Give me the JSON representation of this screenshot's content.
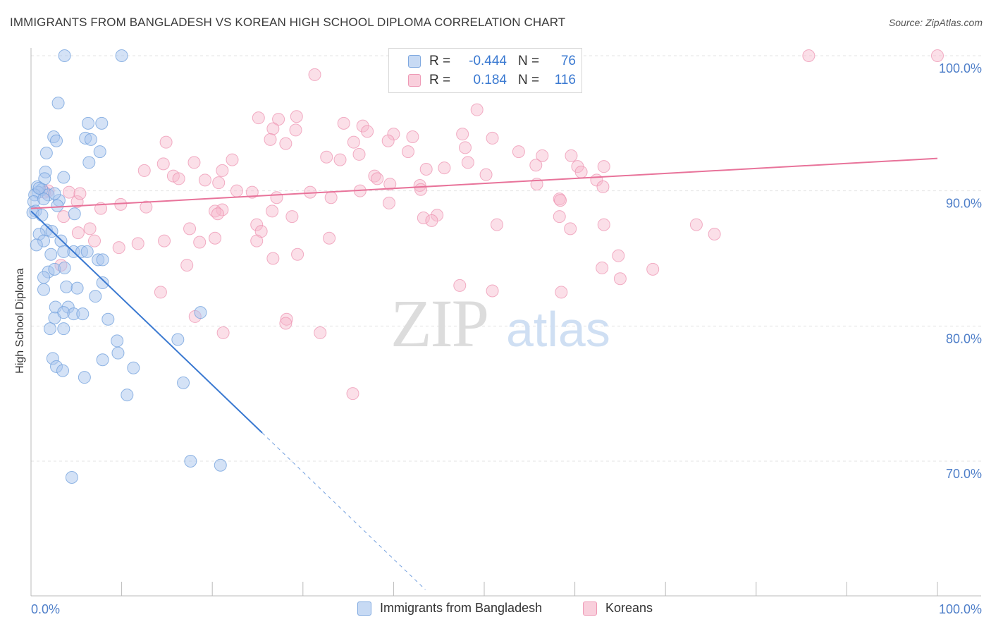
{
  "title": "IMMIGRANTS FROM BANGLADESH VS KOREAN HIGH SCHOOL DIPLOMA CORRELATION CHART",
  "source": "Source: ZipAtlas.com",
  "watermark": {
    "zip": "ZIP",
    "atlas": "atlas"
  },
  "legend": {
    "series1": {
      "r_label": "R =",
      "r_value": "-0.444",
      "n_label": "N =",
      "n_value": "76"
    },
    "series2": {
      "r_label": "R =",
      "r_value": "0.184",
      "n_label": "N =",
      "n_value": "116"
    }
  },
  "colors": {
    "blue_fill": "#a9c6ee",
    "blue_stroke": "#6f9fdc",
    "blue_line": "#3a79d1",
    "blue_text": "#3a79d1",
    "pink_fill": "#f6b9cd",
    "pink_stroke": "#ec8fae",
    "pink_line": "#e8739a",
    "grid": "#e3e3e3",
    "axis_text": "#4f7fc9"
  },
  "chart_data": {
    "type": "scatter",
    "xlabel": "",
    "ylabel": "High School Diploma",
    "xlim": [
      0,
      100
    ],
    "ylim": [
      60,
      100
    ],
    "x_tick_labels": [
      "0.0%",
      "100.0%"
    ],
    "y_ticks": [
      70,
      80,
      90,
      100
    ],
    "y_tick_labels": [
      "70.0%",
      "80.0%",
      "90.0%",
      "100.0%"
    ],
    "grid": true,
    "legend_position": "top-center",
    "series": [
      {
        "name": "Immigrants from Bangladesh",
        "color": "#a9c6ee",
        "trend": {
          "x": [
            0,
            25.5
          ],
          "y": [
            88.5,
            72.1
          ],
          "dashed_to": [
            43.5,
            60.5
          ]
        },
        "points": [
          [
            3.7,
            100
          ],
          [
            10,
            100
          ],
          [
            3,
            96.5
          ],
          [
            6.3,
            95
          ],
          [
            7.8,
            95
          ],
          [
            2.5,
            94
          ],
          [
            6,
            93.9
          ],
          [
            6.6,
            93.8
          ],
          [
            2.8,
            93.7
          ],
          [
            1.7,
            92.8
          ],
          [
            7.6,
            92.9
          ],
          [
            6.4,
            92.1
          ],
          [
            1.6,
            91.4
          ],
          [
            3.6,
            91
          ],
          [
            1.5,
            90.9
          ],
          [
            0.7,
            90.3
          ],
          [
            1.2,
            90.1
          ],
          [
            0.8,
            89.9
          ],
          [
            0.4,
            89.7
          ],
          [
            1.9,
            89.7
          ],
          [
            0.3,
            89.2
          ],
          [
            1.4,
            89.4
          ],
          [
            3.1,
            89.3
          ],
          [
            0.5,
            88.5
          ],
          [
            0.2,
            88.4
          ],
          [
            2.9,
            88.9
          ],
          [
            4.8,
            88.3
          ],
          [
            1.7,
            87.1
          ],
          [
            2.3,
            87
          ],
          [
            0.9,
            86.8
          ],
          [
            1.4,
            86.3
          ],
          [
            3.3,
            86.3
          ],
          [
            0.6,
            86
          ],
          [
            3.6,
            85.5
          ],
          [
            4.7,
            85.5
          ],
          [
            5.6,
            85.5
          ],
          [
            6.2,
            85.5
          ],
          [
            2.2,
            85.3
          ],
          [
            7.4,
            84.9
          ],
          [
            7.9,
            84.9
          ],
          [
            1.9,
            84
          ],
          [
            2.6,
            84.2
          ],
          [
            3.7,
            84.3
          ],
          [
            1.4,
            83.6
          ],
          [
            7.9,
            83.2
          ],
          [
            3.9,
            82.9
          ],
          [
            5.1,
            82.8
          ],
          [
            1.4,
            82.7
          ],
          [
            7.1,
            82.2
          ],
          [
            2.7,
            81.4
          ],
          [
            4.1,
            81.4
          ],
          [
            2.6,
            80.6
          ],
          [
            3.6,
            81
          ],
          [
            4.7,
            80.9
          ],
          [
            5.7,
            80.9
          ],
          [
            8.5,
            80.5
          ],
          [
            18.7,
            81
          ],
          [
            2.1,
            79.8
          ],
          [
            3.6,
            79.8
          ],
          [
            16.2,
            79
          ],
          [
            9.5,
            78.9
          ],
          [
            9.6,
            78
          ],
          [
            7.9,
            77.5
          ],
          [
            2.4,
            77.6
          ],
          [
            11.3,
            76.9
          ],
          [
            2.8,
            77
          ],
          [
            3.5,
            76.7
          ],
          [
            5.9,
            76.2
          ],
          [
            16.8,
            75.8
          ],
          [
            10.6,
            74.9
          ],
          [
            17.6,
            70
          ],
          [
            20.9,
            69.7
          ],
          [
            4.5,
            68.8
          ],
          [
            0.9,
            90.2
          ],
          [
            2.6,
            89.8
          ],
          [
            1.2,
            88.2
          ]
        ]
      },
      {
        "name": "Koreans",
        "color": "#f6b9cd",
        "trend": {
          "x": [
            0,
            100
          ],
          "y": [
            88.7,
            92.4
          ]
        },
        "points": [
          [
            40.3,
            100
          ],
          [
            85.8,
            100
          ],
          [
            100,
            100
          ],
          [
            31.3,
            98.6
          ],
          [
            49.2,
            96
          ],
          [
            29.3,
            95.5
          ],
          [
            25.1,
            95.4
          ],
          [
            27.3,
            95.3
          ],
          [
            34.5,
            95
          ],
          [
            26.7,
            94.6
          ],
          [
            29.2,
            94.5
          ],
          [
            36.6,
            94.8
          ],
          [
            37.1,
            94.4
          ],
          [
            47.6,
            94.2
          ],
          [
            40,
            94.2
          ],
          [
            42.1,
            94
          ],
          [
            50.9,
            93.9
          ],
          [
            39.4,
            93.7
          ],
          [
            26.4,
            93.8
          ],
          [
            35.6,
            93.6
          ],
          [
            14.9,
            93.6
          ],
          [
            28.1,
            93.5
          ],
          [
            47.9,
            93.2
          ],
          [
            41.6,
            92.9
          ],
          [
            36.2,
            92.7
          ],
          [
            53.8,
            92.9
          ],
          [
            56.4,
            92.6
          ],
          [
            59.6,
            92.6
          ],
          [
            32.6,
            92.5
          ],
          [
            34.1,
            92.3
          ],
          [
            22.2,
            92.3
          ],
          [
            18,
            92.1
          ],
          [
            14.6,
            92
          ],
          [
            48.2,
            92.1
          ],
          [
            55.7,
            91.9
          ],
          [
            60.3,
            91.8
          ],
          [
            63.2,
            91.8
          ],
          [
            45.6,
            91.7
          ],
          [
            43.6,
            91.6
          ],
          [
            21.1,
            91.5
          ],
          [
            60.7,
            91.4
          ],
          [
            12.5,
            91.5
          ],
          [
            50.2,
            91.2
          ],
          [
            37.9,
            91.1
          ],
          [
            38.2,
            90.9
          ],
          [
            15.7,
            91.1
          ],
          [
            16.3,
            90.9
          ],
          [
            19.2,
            90.8
          ],
          [
            20.7,
            90.6
          ],
          [
            39.6,
            90.5
          ],
          [
            55.8,
            90.5
          ],
          [
            62.4,
            90.8
          ],
          [
            63.1,
            90.3
          ],
          [
            42.9,
            90.4
          ],
          [
            22.7,
            90
          ],
          [
            36.3,
            90
          ],
          [
            43,
            90.1
          ],
          [
            27.1,
            89.5
          ],
          [
            4.2,
            89.9
          ],
          [
            1.9,
            90
          ],
          [
            24.4,
            89.9
          ],
          [
            30.8,
            89.9
          ],
          [
            33.1,
            89.5
          ],
          [
            58.3,
            89.4
          ],
          [
            58.4,
            89.3
          ],
          [
            39.5,
            89.1
          ],
          [
            5.1,
            89.2
          ],
          [
            9.9,
            89
          ],
          [
            12.7,
            88.8
          ],
          [
            7.7,
            88.7
          ],
          [
            21.1,
            88.6
          ],
          [
            20.3,
            88.5
          ],
          [
            26.6,
            88.5
          ],
          [
            20.6,
            88.3
          ],
          [
            28.8,
            88.1
          ],
          [
            44.8,
            88.2
          ],
          [
            43.3,
            88
          ],
          [
            3.6,
            88.1
          ],
          [
            58.3,
            88.1
          ],
          [
            44.2,
            87.8
          ],
          [
            24.9,
            87.5
          ],
          [
            51.4,
            87.5
          ],
          [
            63.2,
            87.5
          ],
          [
            59.5,
            87.2
          ],
          [
            73.4,
            87.5
          ],
          [
            75.4,
            86.8
          ],
          [
            6.5,
            87.2
          ],
          [
            5.2,
            86.9
          ],
          [
            17.5,
            87.2
          ],
          [
            25.4,
            87
          ],
          [
            20.3,
            86.5
          ],
          [
            14.7,
            86.3
          ],
          [
            11.8,
            86.1
          ],
          [
            18.6,
            86.2
          ],
          [
            24.9,
            86.3
          ],
          [
            32.9,
            86.5
          ],
          [
            7,
            86.3
          ],
          [
            9.7,
            85.8
          ],
          [
            26.7,
            85
          ],
          [
            29.4,
            85.3
          ],
          [
            64.8,
            85.2
          ],
          [
            68.6,
            84.2
          ],
          [
            17.2,
            84.5
          ],
          [
            3.3,
            84.5
          ],
          [
            63,
            84.3
          ],
          [
            65,
            83.5
          ],
          [
            47.3,
            83
          ],
          [
            50.9,
            82.6
          ],
          [
            58.5,
            82.5
          ],
          [
            14.3,
            82.5
          ],
          [
            18.1,
            80.7
          ],
          [
            28.2,
            80.5
          ],
          [
            28.1,
            80.2
          ],
          [
            31.9,
            79.5
          ],
          [
            21.2,
            79.5
          ],
          [
            35.5,
            75
          ],
          [
            5.4,
            89.8
          ],
          [
            1.5,
            89.9
          ]
        ]
      }
    ]
  }
}
